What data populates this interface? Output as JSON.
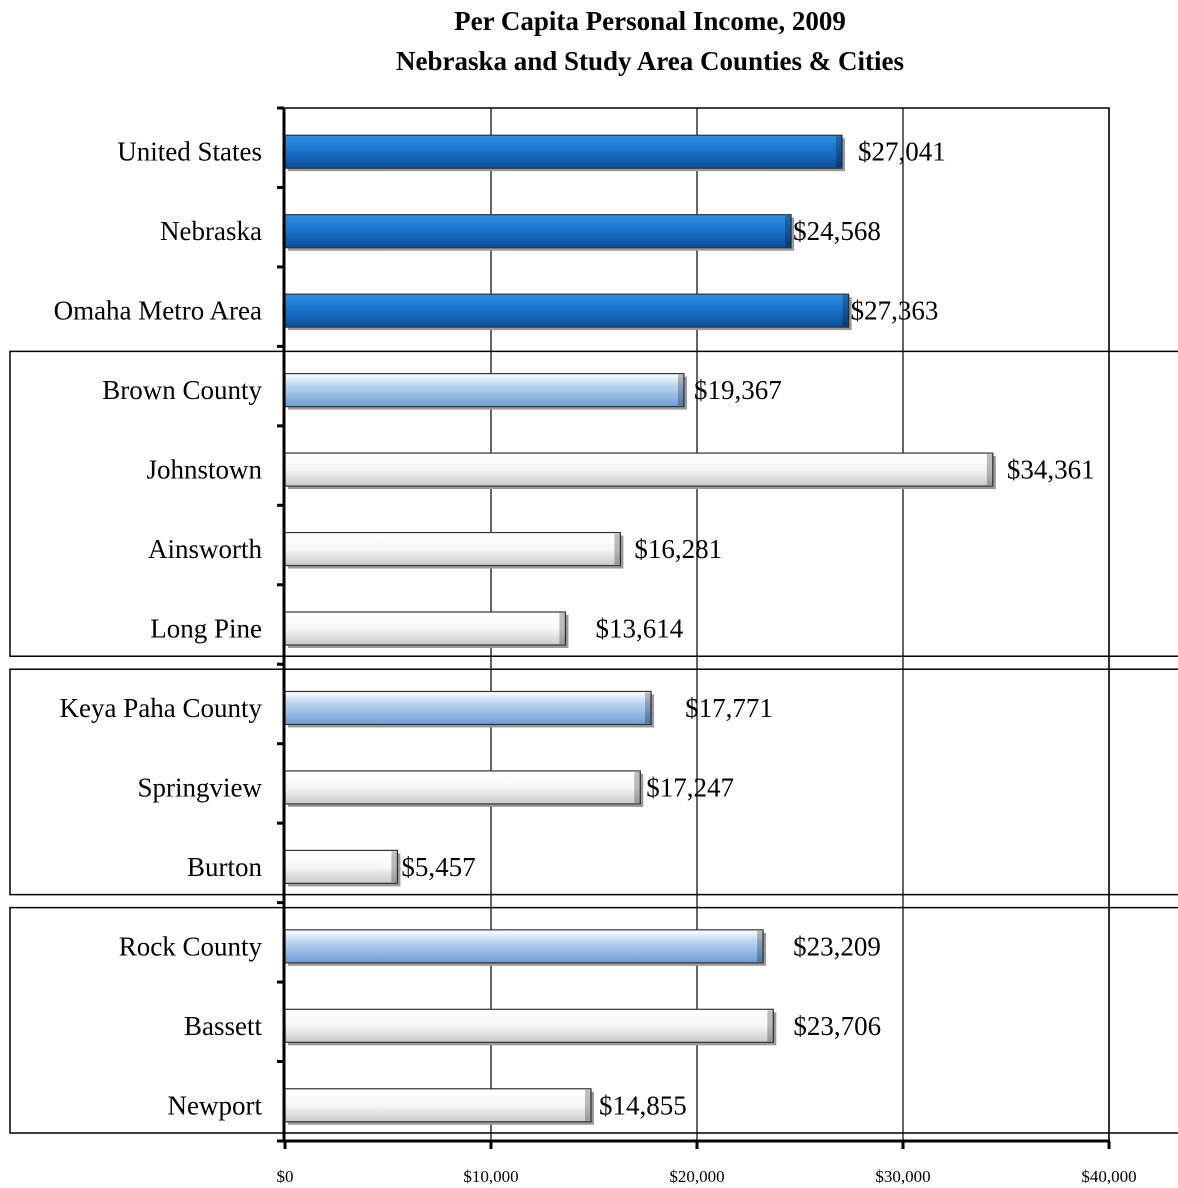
{
  "chart_data": {
    "type": "bar",
    "orientation": "horizontal",
    "title": [
      "Per Capita Personal Income, 2009",
      "Nebraska and Study Area Counties & Cities"
    ],
    "categories": [
      "United States",
      "Nebraska",
      "Omaha Metro Area",
      "Brown County",
      "Johnstown",
      "Ainsworth",
      "Long Pine",
      "Keya Paha County",
      "Springview",
      "Burton",
      "Rock County",
      "Bassett",
      "Newport"
    ],
    "values": [
      27041,
      24568,
      27363,
      19367,
      34361,
      16281,
      13614,
      17771,
      17247,
      5457,
      23209,
      23706,
      14855
    ],
    "value_labels": [
      "$27,041",
      "$24,568",
      "$27,363",
      "$19,367",
      "$34,361",
      "$16,281",
      "$13,614",
      "$17,771",
      "$17,247",
      "$5,457",
      "$23,209",
      "$23,706",
      "$14,855"
    ],
    "bar_styles": [
      "reference",
      "reference",
      "reference",
      "county",
      "city",
      "city",
      "city",
      "county",
      "city",
      "city",
      "county",
      "city",
      "city"
    ],
    "groups": [
      {
        "name": "Brown County",
        "members": [
          "Brown County",
          "Johnstown",
          "Ainsworth",
          "Long Pine"
        ]
      },
      {
        "name": "Keya Paha County",
        "members": [
          "Keya Paha County",
          "Springview",
          "Burton"
        ]
      },
      {
        "name": "Rock County",
        "members": [
          "Rock County",
          "Bassett",
          "Newport"
        ]
      }
    ],
    "xlim": [
      0,
      40000
    ],
    "xticks": [
      0,
      10000,
      20000,
      30000,
      40000
    ],
    "xtick_labels": [
      "$0",
      "$10,000",
      "$20,000",
      "$30,000",
      "$40,000"
    ],
    "grid": "vertical major lines",
    "colors": {
      "reference": "#1f78c8",
      "county": "#8fb7e3",
      "city": "#f4f4f4",
      "outline": "#000000",
      "grid": "#000000"
    }
  }
}
